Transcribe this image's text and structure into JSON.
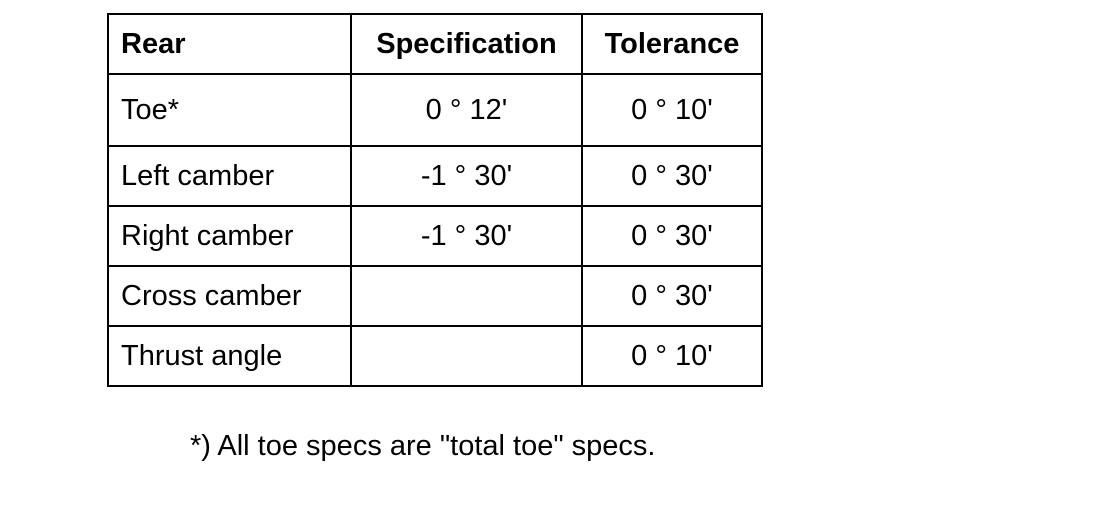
{
  "table": {
    "headers": {
      "col1": "Rear",
      "col2": "Specification",
      "col3": "Tolerance"
    },
    "rows": [
      {
        "label": "Toe*",
        "specification": "0 ° 12'",
        "tolerance": "0 ° 10'"
      },
      {
        "label": "Left camber",
        "specification": "-1 ° 30'",
        "tolerance": "0 ° 30'"
      },
      {
        "label": "Right camber",
        "specification": "-1 ° 30'",
        "tolerance": "0 ° 30'"
      },
      {
        "label": "Cross camber",
        "specification": "",
        "tolerance": "0 ° 30'"
      },
      {
        "label": "Thrust angle",
        "specification": "",
        "tolerance": "0 ° 10'"
      }
    ]
  },
  "footnote": "*) All toe specs are \"total toe\" specs."
}
